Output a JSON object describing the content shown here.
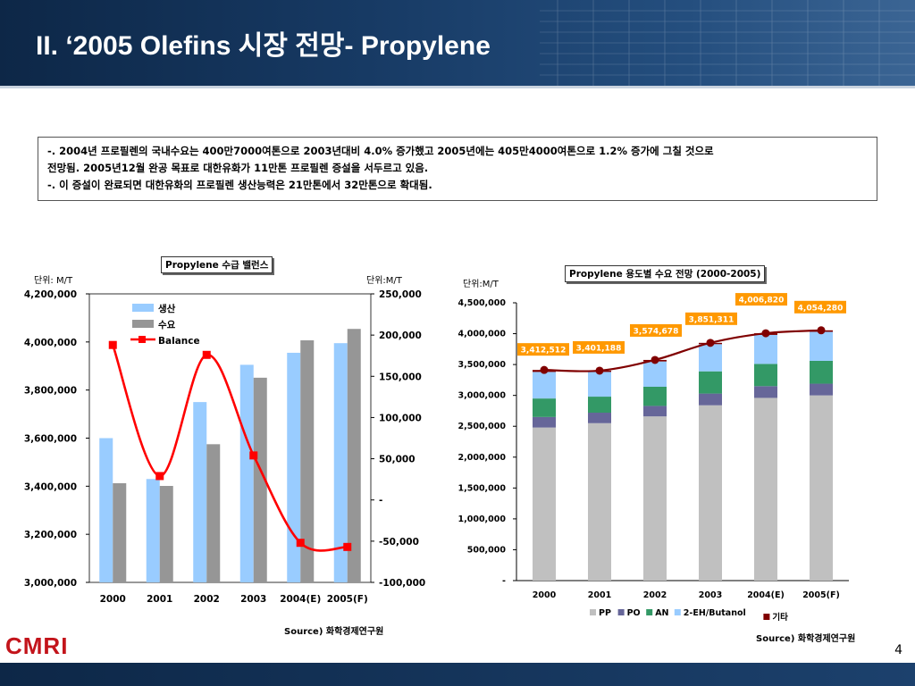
{
  "header": {
    "title": "II. ‘2005 Olefins 시장 전망- Propylene"
  },
  "summary": {
    "line1": "-. 2004년 프로필렌의 국내수요는 400만7000여톤으로 2003년대비 4.0% 증가했고 2005년에는 405만4000여톤으로 1.2% 증가에 그칠 것으로",
    "line2": "전망됨. 2005년12월 완공 목표로 대한유화가 11만톤 프로필렌 증설을 서두르고 있음.",
    "line3": "-. 이 증설이 완료되면 대한유화의 프로필렌 생산능력은 21만톤에서 32만톤으로 확대됨."
  },
  "left_chart": {
    "box_title": "Propylene 수급 밸런스",
    "unit_left": "단위: M/T",
    "unit_right": "단위:M/T",
    "source": "Source) 화학경제연구원"
  },
  "right_chart": {
    "box_title": "Propylene 용도별 수요 전망 (2000-2005)",
    "unit": "단위:M/T",
    "source": "Source) 화학경제연구원"
  },
  "footer": {
    "logo": "CMRI",
    "page_number": "4"
  },
  "colors": {
    "production": "#99ccff",
    "demand": "#969696",
    "balance": "#ff0000",
    "pp": "#c0c0c0",
    "po": "#666699",
    "an": "#339966",
    "butanol": "#99ccff",
    "total_line": "#800000"
  },
  "chart_data": [
    {
      "type": "bar",
      "title": "Propylene 수급 밸런스",
      "categories": [
        "2000",
        "2001",
        "2002",
        "2003",
        "2004(E)",
        "2005(F)"
      ],
      "y_left_ticks": [
        "3,000,000",
        "3,200,000",
        "3,400,000",
        "3,600,000",
        "3,800,000",
        "4,000,000",
        "4,200,000"
      ],
      "y_right_ticks": [
        "-100,000",
        "-50,000",
        "-",
        "50,000",
        "100,000",
        "150,000",
        "200,000",
        "250,000"
      ],
      "ylim_left": [
        3000000,
        4200000
      ],
      "ylim_right": [
        -100000,
        250000
      ],
      "series": [
        {
          "name": "생산",
          "axis": "left",
          "values": [
            3600000,
            3430000,
            3750000,
            3905000,
            3955000,
            3995000
          ]
        },
        {
          "name": "수요",
          "axis": "left",
          "values": [
            3412512,
            3401188,
            3574678,
            3851311,
            4006820,
            4054280
          ]
        },
        {
          "name": "Balance",
          "axis": "right",
          "type": "line",
          "values": [
            188000,
            29000,
            176000,
            54000,
            -52000,
            -57000
          ]
        }
      ],
      "legend": "top-left"
    },
    {
      "type": "bar",
      "stacked": true,
      "title": "Propylene 용도별 수요 전망 (2000-2005)",
      "categories": [
        "2000",
        "2001",
        "2002",
        "2003",
        "2004(E)",
        "2005(F)"
      ],
      "y_ticks": [
        "-",
        "500,000",
        "1,000,000",
        "1,500,000",
        "2,000,000",
        "2,500,000",
        "3,000,000",
        "3,500,000",
        "4,000,000",
        "4,500,000"
      ],
      "ylim": [
        0,
        4500000
      ],
      "series": [
        {
          "name": "PP",
          "values": [
            2480000,
            2550000,
            2660000,
            2840000,
            2960000,
            3000000
          ]
        },
        {
          "name": "PO",
          "values": [
            170000,
            170000,
            170000,
            190000,
            190000,
            190000
          ]
        },
        {
          "name": "AN",
          "values": [
            300000,
            260000,
            310000,
            360000,
            360000,
            370000
          ]
        },
        {
          "name": "2-EH/Butanol",
          "values": [
            430000,
            400000,
            410000,
            440000,
            470000,
            470000
          ]
        },
        {
          "name": "기타",
          "values": [
            32512,
            21188,
            24678,
            21311,
            26820,
            24280
          ]
        }
      ],
      "totals": [
        3412512,
        3401188,
        3574678,
        3851311,
        4006820,
        4054280
      ],
      "total_labels": [
        "3,412,512",
        "3,401,188",
        "3,574,678",
        "3,851,311",
        "4,006,820",
        "4,054,280"
      ],
      "legend": "bottom"
    }
  ]
}
